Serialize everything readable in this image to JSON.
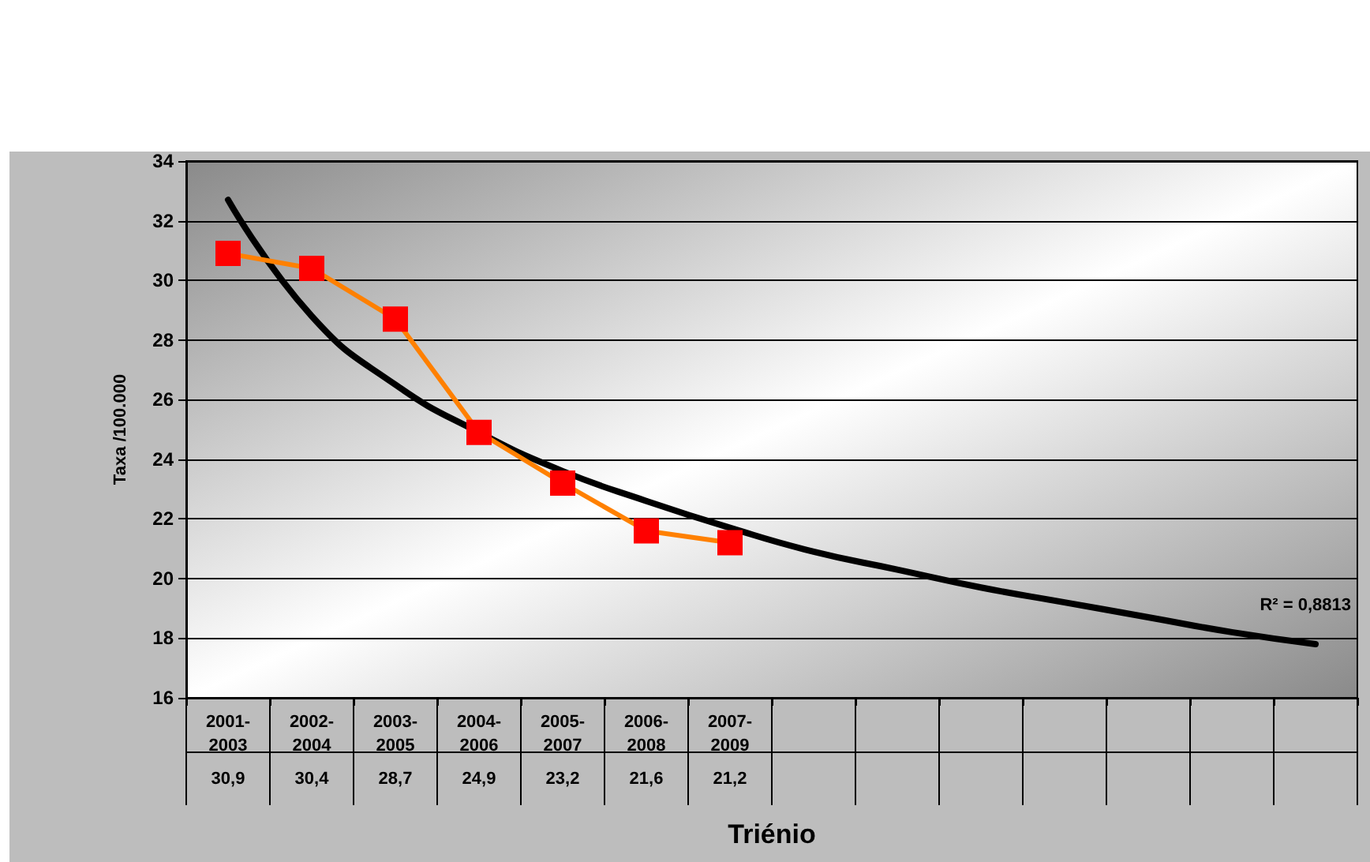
{
  "chart_data": {
    "type": "line",
    "xlabel": "Triénio",
    "ylabel": "Taxa /100.000",
    "categories": [
      "2001-2003",
      "2002-2004",
      "2003-2005",
      "2004-2006",
      "2005-2007",
      "2006-2008",
      "2007-2009",
      null,
      null,
      null,
      null,
      null,
      null,
      null
    ],
    "series": [
      {
        "color": "#ff8000",
        "colors": [
          "#ff0000",
          "#ff0000",
          "#ff0000",
          "#ff0000",
          "#ff0000",
          "#ff0000",
          "#ff0000",
          "#ff0000",
          "#ff0000",
          "#ff0000",
          "#ff0000",
          "#ff0000",
          "#ff0000",
          "#ff0000"
        ],
        "marker": "square",
        "values": [
          30.9,
          30.4,
          28.7,
          24.9,
          23.2,
          21.6,
          21.2,
          null,
          null,
          null,
          null,
          null,
          null,
          null
        ],
        "value_labels": [
          "30,9",
          "30,4",
          "28,7",
          "24,9",
          "23,2",
          "21,6",
          "21,2",
          null,
          null,
          null,
          null,
          null,
          null,
          null
        ]
      },
      {
        "type": "line",
        "color": "#000000",
        "marker": "none",
        "values": [
          32.7,
          28.8,
          26.5,
          24.9,
          23.6,
          22.6,
          21.7,
          20.9,
          20.3,
          19.7,
          19.2,
          18.7,
          18.2,
          17.8
        ]
      }
    ],
    "ylim": [
      16,
      34
    ],
    "yticks": [
      16,
      18,
      20,
      22,
      24,
      26,
      28,
      30,
      32,
      34
    ],
    "grid": "y",
    "annotations": [
      "R² = 0,8813"
    ]
  }
}
